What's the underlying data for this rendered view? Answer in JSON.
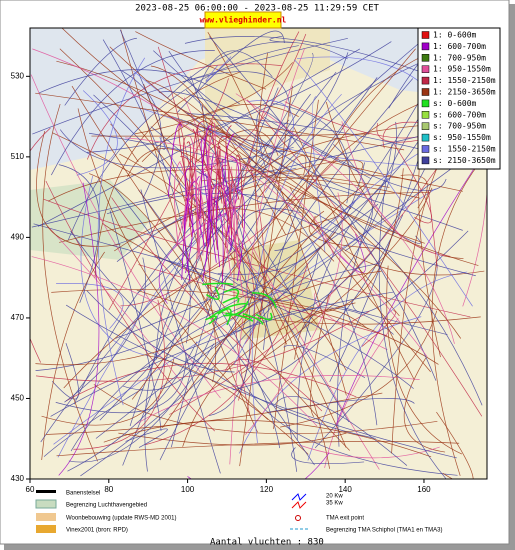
{
  "header": {
    "title": "2023-08-25 06:00:00 - 2023-08-25 11:29:59 CET",
    "site": "www.vlieghinder.nl"
  },
  "map": {
    "xlim": [
      60,
      176
    ],
    "ylim": [
      430,
      542
    ],
    "xticks": [
      60,
      80,
      100,
      120,
      140,
      160
    ],
    "yticks": [
      430,
      450,
      470,
      490,
      510,
      530
    ]
  },
  "legend": [
    {
      "label": "1: 0-600m",
      "color": "#e01010"
    },
    {
      "label": "1: 600-700m",
      "color": "#a000c8"
    },
    {
      "label": "1: 700-950m",
      "color": "#3c7a10"
    },
    {
      "label": "1: 950-1550m",
      "color": "#e0509a"
    },
    {
      "label": "1: 1550-2150m",
      "color": "#c02848"
    },
    {
      "label": "1: 2150-3650m",
      "color": "#9a3414"
    },
    {
      "label": "s: 0-600m",
      "color": "#20e020"
    },
    {
      "label": "s: 600-700m",
      "color": "#98e040"
    },
    {
      "label": "s: 700-950m",
      "color": "#a8c870"
    },
    {
      "label": "s: 950-1550m",
      "color": "#20c0c8"
    },
    {
      "label": "s: 1550-2150m",
      "color": "#6a6ae0"
    },
    {
      "label": "s: 2150-3650m",
      "color": "#40409c"
    }
  ],
  "key": {
    "runways": "Banenstelsel",
    "airport": "Begrenzing Luchthavengebied",
    "housing": "Woonbebouwing (update RWS-MD 2001)",
    "vinex": "Vinex2001 (bron: RPD)",
    "kw20": "20 Kw",
    "kw35": "35 Kw",
    "tma_exit": "TMA exit point",
    "tma_border": "Begrenzing TMA Schiphol  (TMA1 en TMA3)"
  },
  "footer": "Aantal vluchten : 830"
}
